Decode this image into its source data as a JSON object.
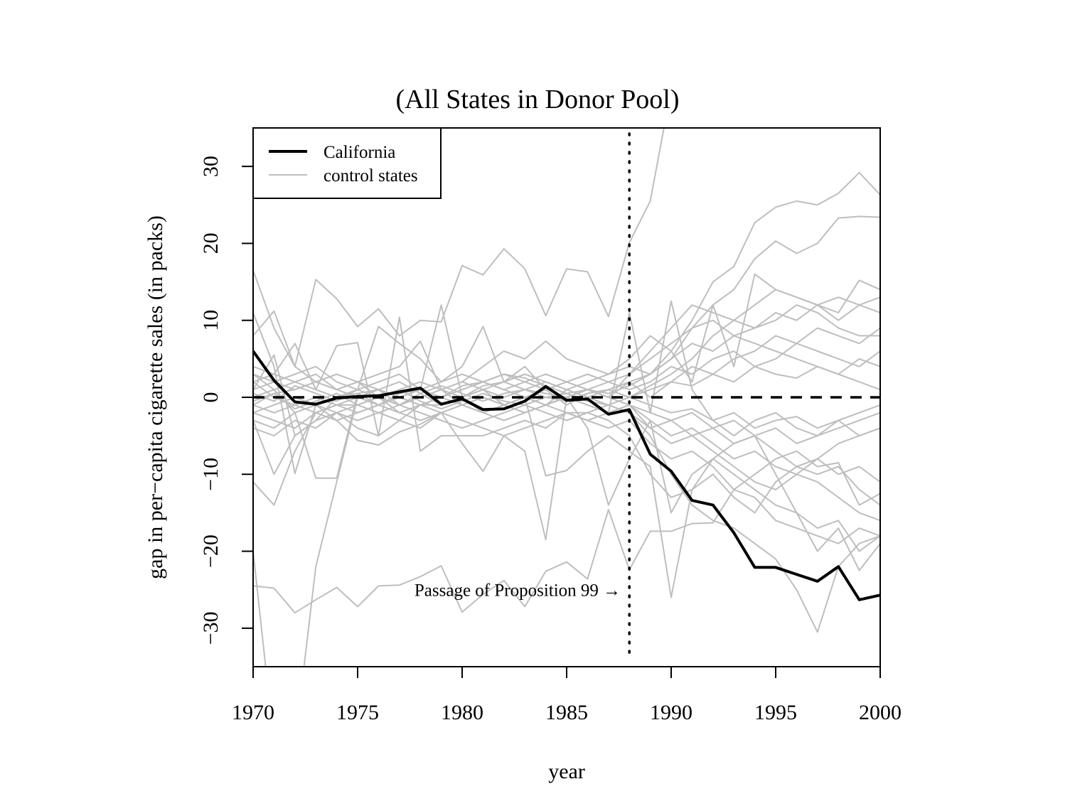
{
  "chart_data": {
    "type": "line",
    "title": "(All States in Donor Pool)",
    "xlabel": "year",
    "ylabel": "gap in per−capita cigarette sales (in packs)",
    "xlim": [
      1970,
      2000
    ],
    "ylim": [
      -35,
      35
    ],
    "x_ticks": [
      1970,
      1975,
      1980,
      1985,
      1990,
      1995,
      2000
    ],
    "x_tick_labels": [
      "1970",
      "1975",
      "1980",
      "1985",
      "1990",
      "1995",
      "2000"
    ],
    "y_ticks": [
      -30,
      -20,
      -10,
      0,
      10,
      20,
      30
    ],
    "y_tick_labels": [
      "−30",
      "−20",
      "−10",
      "0",
      "10",
      "20",
      "30"
    ],
    "grid": false,
    "legend": {
      "position": "top-left",
      "entries": [
        {
          "label": "California",
          "color": "#000000"
        },
        {
          "label": "control states",
          "color": "#bebebe"
        }
      ]
    },
    "reference_lines": [
      {
        "type": "horizontal",
        "y": 0,
        "style": "dashed",
        "color": "#000000"
      },
      {
        "type": "vertical",
        "x": 1988,
        "style": "dotted",
        "color": "#000000"
      }
    ],
    "annotation": {
      "text": "Passage of Proposition 99 →",
      "x": 1988,
      "y": -25
    },
    "x": [
      1970,
      1971,
      1972,
      1973,
      1974,
      1975,
      1976,
      1977,
      1978,
      1979,
      1980,
      1981,
      1982,
      1983,
      1984,
      1985,
      1986,
      1987,
      1988,
      1989,
      1990,
      1991,
      1992,
      1993,
      1994,
      1995,
      1996,
      1997,
      1998,
      1999,
      2000
    ],
    "series": [
      {
        "name": "California",
        "color": "#000000",
        "values": [
          6.0,
          2.2,
          -0.6,
          -0.9,
          -0.1,
          0.1,
          0.2,
          0.7,
          1.2,
          -0.9,
          -0.2,
          -1.6,
          -1.5,
          -0.5,
          1.4,
          -0.4,
          -0.2,
          -2.2,
          -1.6,
          -7.4,
          -9.6,
          -13.4,
          -14.0,
          -17.6,
          -22.1,
          -22.1,
          -23.0,
          -23.9,
          -22.0,
          -26.3,
          -25.7
        ]
      },
      {
        "name": "",
        "color": "#bebebe",
        "values": [
          16.5,
          9.0,
          4.0,
          15.3,
          12.8,
          9.2,
          11.5,
          8.0,
          10.0,
          9.8,
          17.1,
          15.9,
          19.3,
          16.7,
          10.6,
          16.7,
          16.3,
          10.5,
          20.1,
          25.5,
          40.0,
          40.0,
          40.0,
          40.0,
          40.0,
          40.0,
          40.0,
          40.0,
          40.0,
          40.0,
          40.0
        ]
      },
      {
        "name": "",
        "color": "#bebebe",
        "values": [
          -24.5,
          -24.8,
          -28.0,
          -26.3,
          -24.7,
          -27.2,
          -24.5,
          -24.4,
          -23.3,
          -21.9,
          -27.9,
          -25.6,
          -23.8,
          -27.2,
          -22.6,
          -21.4,
          -23.6,
          -14.6,
          -22.4,
          -17.4,
          -17.4,
          -16.4,
          -16.3,
          -12.0,
          -10.0,
          -8.0,
          -7.0,
          -9.0,
          -8.5,
          -14.0,
          -12.5
        ]
      },
      {
        "name": "",
        "color": "#bebebe",
        "values": [
          -20.0,
          -45.0,
          -45.0,
          -22.0,
          -11.0,
          0.0,
          1.0,
          2.0,
          0.5,
          -1.0,
          0.0,
          1.5,
          2.0,
          1.0,
          0.5,
          0.0,
          1.0,
          0.5,
          1.5,
          3.0,
          6.0,
          10.0,
          15.0,
          17.0,
          22.7,
          24.7,
          25.5,
          25.0,
          26.5,
          29.2,
          26.3
        ]
      },
      {
        "name": "",
        "color": "#bebebe",
        "values": [
          8.0,
          11.2,
          4.0,
          2.0,
          1.0,
          0.0,
          -1.0,
          0.5,
          1.0,
          0.0,
          1.5,
          2.0,
          3.0,
          2.5,
          1.5,
          0.5,
          1.0,
          0.0,
          2.0,
          3.0,
          5.0,
          9.0,
          12.0,
          14.0,
          18.0,
          20.3,
          18.7,
          20.0,
          23.3,
          23.5,
          23.4
        ]
      },
      {
        "name": "",
        "color": "#bebebe",
        "values": [
          3.0,
          1.0,
          -2.0,
          -10.5,
          -10.5,
          0.5,
          1.0,
          -1.0,
          0.0,
          1.0,
          -1.0,
          -2.0,
          -1.0,
          0.0,
          -1.0,
          1.0,
          0.0,
          -1.0,
          -2.0,
          -5.0,
          -10.0,
          -14.0,
          -16.0,
          -17.0,
          -19.0,
          -21.0,
          -25.0,
          -30.5,
          -22.0,
          -19.0,
          -18.0
        ]
      },
      {
        "name": "",
        "color": "#bebebe",
        "values": [
          11.0,
          4.0,
          -9.9,
          -1.0,
          0.0,
          0.5,
          -1.0,
          0.0,
          1.0,
          12.0,
          0.0,
          1.0,
          -1.0,
          0.0,
          1.0,
          -1.0,
          0.5,
          1.0,
          0.0,
          1.5,
          3.0,
          5.0,
          8.0,
          10.0,
          12.0,
          14.0,
          13.0,
          12.0,
          10.0,
          12.0,
          13.0
        ]
      },
      {
        "name": "",
        "color": "#bebebe",
        "values": [
          -11.0,
          -14.0,
          -7.0,
          -2.0,
          -1.0,
          -1.0,
          0.0,
          -2.0,
          -1.0,
          -1.0,
          0.0,
          -2.0,
          -1.0,
          0.0,
          -10.2,
          -9.5,
          -7.0,
          -5.0,
          -7.0,
          -9.0,
          -26.0,
          -12.0,
          -8.0,
          -10.0,
          -12.0,
          -14.0,
          -15.0,
          -17.0,
          -16.0,
          -20.0,
          -18.0
        ]
      },
      {
        "name": "",
        "color": "#bebebe",
        "values": [
          1.0,
          5.5,
          -5.0,
          -3.0,
          0.0,
          1.0,
          9.2,
          7.0,
          5.0,
          2.0,
          4.0,
          9.2,
          2.0,
          4.0,
          1.0,
          2.0,
          1.0,
          0.0,
          3.0,
          6.0,
          9.0,
          12.0,
          11.0,
          10.0,
          9.0,
          10.0,
          12.0,
          11.0,
          9.0,
          8.0,
          8.0
        ]
      },
      {
        "name": "",
        "color": "#bebebe",
        "values": [
          -3.0,
          -10.0,
          -5.0,
          -3.0,
          -2.0,
          -4.0,
          -5.0,
          -3.0,
          -4.0,
          -2.0,
          -6.0,
          -9.6,
          -5.0,
          -7.0,
          -18.5,
          0.0,
          -4.0,
          -14.0,
          -8.0,
          -3.0,
          -15.0,
          -10.0,
          -8.0,
          -6.0,
          -5.0,
          -10.0,
          -15.0,
          -20.0,
          -17.0,
          -22.5,
          -19.0
        ]
      },
      {
        "name": "",
        "color": "#bebebe",
        "values": [
          2.0,
          3.0,
          7.0,
          1.0,
          6.7,
          7.1,
          -5.0,
          10.4,
          -7.0,
          -5.0,
          -5.0,
          -5.0,
          -4.0,
          -3.0,
          -4.0,
          -2.0,
          -3.0,
          -2.0,
          11.0,
          -2.0,
          12.5,
          1.0,
          -3.0,
          -5.0,
          -3.0,
          -2.0,
          -4.0,
          -5.0,
          -3.0,
          -2.0,
          -1.0
        ]
      },
      {
        "name": "",
        "color": "#bebebe",
        "values": [
          -1.0,
          0.5,
          1.0,
          2.0,
          1.0,
          2.0,
          3.0,
          4.0,
          7.3,
          1.0,
          2.0,
          4.0,
          6.0,
          5.0,
          7.3,
          5.0,
          4.0,
          3.0,
          5.0,
          8.0,
          6.0,
          2.0,
          12.0,
          4.0,
          16.0,
          14.0,
          13.0,
          12.0,
          11.0,
          15.2,
          14.0
        ]
      },
      {
        "name": "",
        "color": "#bebebe",
        "values": [
          -2.0,
          -3.0,
          -4.0,
          -2.0,
          -3.0,
          -5.6,
          -6.2,
          -4.5,
          -3.5,
          -2.0,
          -3.0,
          -4.0,
          -5.0,
          -4.0,
          -3.0,
          -2.0,
          -2.0,
          -3.0,
          -5.0,
          -10.0,
          -13.0,
          -12.0,
          -10.0,
          -13.0,
          -15.0,
          -11.0,
          -9.0,
          -10.0,
          -9.0,
          -12.0,
          -14.0
        ]
      },
      {
        "name": "",
        "color": "#bebebe",
        "values": [
          0.0,
          1.0,
          2.0,
          1.0,
          0.0,
          1.0,
          2.0,
          3.0,
          1.0,
          0.0,
          1.0,
          2.0,
          3.0,
          2.0,
          1.0,
          2.0,
          3.0,
          2.0,
          3.0,
          5.0,
          7.0,
          9.0,
          10.0,
          8.0,
          7.0,
          6.0,
          5.0,
          4.0,
          3.0,
          2.0,
          1.0
        ]
      },
      {
        "name": "",
        "color": "#bebebe",
        "values": [
          -1.0,
          -2.0,
          -1.0,
          0.0,
          -1.0,
          -2.0,
          -1.0,
          0.0,
          -1.0,
          -2.0,
          -1.0,
          0.0,
          -1.0,
          -2.0,
          -1.0,
          0.0,
          -1.0,
          -2.0,
          -1.0,
          -3.0,
          -5.0,
          -4.0,
          -6.0,
          -8.0,
          -7.0,
          -9.0,
          -10.0,
          -8.0,
          -6.0,
          -5.0,
          -4.0
        ]
      },
      {
        "name": "",
        "color": "#bebebe",
        "values": [
          3.0,
          2.0,
          1.0,
          2.0,
          3.0,
          2.0,
          1.0,
          0.0,
          1.0,
          2.0,
          3.0,
          2.0,
          1.0,
          2.0,
          3.0,
          2.0,
          1.0,
          2.0,
          1.0,
          2.0,
          4.0,
          3.0,
          5.0,
          6.0,
          4.0,
          5.0,
          7.0,
          6.0,
          5.0,
          4.0,
          6.0
        ]
      },
      {
        "name": "",
        "color": "#bebebe",
        "values": [
          -3.0,
          -4.0,
          -2.0,
          -1.0,
          -2.0,
          -3.0,
          -2.0,
          -1.0,
          -2.0,
          -3.0,
          -4.0,
          -3.0,
          -2.0,
          -1.0,
          -2.0,
          -3.0,
          -2.0,
          -1.0,
          -2.0,
          -4.0,
          -6.0,
          -5.0,
          -7.0,
          -9.0,
          -11.0,
          -12.0,
          -10.0,
          -11.0,
          -13.0,
          -15.0,
          -16.0
        ]
      },
      {
        "name": "",
        "color": "#bebebe",
        "values": [
          2.0,
          0.0,
          -1.0,
          -2.0,
          -1.0,
          0.0,
          1.0,
          0.0,
          -1.0,
          0.0,
          1.0,
          2.0,
          1.0,
          0.0,
          -1.0,
          0.0,
          1.0,
          0.0,
          -1.0,
          -2.0,
          -3.0,
          -2.0,
          -4.0,
          -3.0,
          -5.0,
          -4.0,
          -6.0,
          -5.0,
          -4.0,
          -3.0,
          -2.0
        ]
      },
      {
        "name": "",
        "color": "#bebebe",
        "values": [
          4.0,
          3.0,
          2.0,
          3.0,
          1.0,
          2.0,
          0.0,
          1.0,
          2.0,
          1.0,
          0.0,
          1.0,
          2.0,
          3.0,
          2.0,
          1.0,
          2.0,
          3.0,
          4.0,
          3.0,
          5.0,
          7.0,
          6.0,
          8.0,
          9.0,
          11.0,
          10.0,
          12.0,
          13.0,
          12.0,
          11.0
        ]
      },
      {
        "name": "",
        "color": "#bebebe",
        "values": [
          -4.0,
          -5.0,
          -3.0,
          -4.0,
          -2.0,
          -1.0,
          -2.0,
          -3.0,
          -1.0,
          0.0,
          -1.0,
          -2.0,
          -3.0,
          -2.0,
          -1.0,
          -2.0,
          -3.0,
          -4.0,
          -3.0,
          -6.0,
          -8.0,
          -7.0,
          -9.0,
          -12.0,
          -13.0,
          -16.0,
          -17.0,
          -18.0,
          -19.0,
          -17.0,
          -18.0
        ]
      },
      {
        "name": "",
        "color": "#bebebe",
        "values": [
          1.0,
          2.0,
          3.0,
          4.0,
          2.0,
          1.0,
          0.0,
          -1.0,
          0.0,
          1.0,
          2.0,
          1.0,
          0.0,
          1.0,
          2.0,
          1.0,
          0.0,
          1.0,
          2.0,
          0.0,
          2.0,
          4.0,
          3.0,
          5.0,
          6.0,
          8.0,
          7.0,
          9.0,
          8.0,
          7.0,
          9.0
        ]
      },
      {
        "name": "",
        "color": "#bebebe",
        "values": [
          -2.0,
          -1.0,
          0.0,
          -1.0,
          -3.0,
          -2.0,
          -1.0,
          -2.0,
          -3.0,
          -2.0,
          -1.0,
          0.0,
          -1.0,
          -2.0,
          -1.0,
          0.0,
          -1.0,
          -2.0,
          -1.0,
          -4.0,
          -3.0,
          -5.0,
          -4.0,
          -6.0,
          -5.0,
          -7.0,
          -9.0,
          -8.0,
          -10.0,
          -9.0,
          -11.0
        ]
      },
      {
        "name": "",
        "color": "#bebebe",
        "values": [
          0.5,
          -0.5,
          1.5,
          0.5,
          -0.5,
          1.0,
          0.0,
          -1.0,
          0.5,
          1.5,
          0.5,
          -0.5,
          0.5,
          1.0,
          0.0,
          -0.5,
          0.5,
          1.0,
          0.0,
          1.0,
          2.0,
          1.5,
          3.0,
          2.0,
          4.0,
          3.0,
          2.5,
          4.0,
          3.0,
          5.0,
          4.0
        ]
      },
      {
        "name": "",
        "color": "#bebebe",
        "values": [
          -0.5,
          0.5,
          -1.5,
          -0.5,
          0.5,
          -1.0,
          0.0,
          1.0,
          -0.5,
          -1.5,
          -0.5,
          0.5,
          -0.5,
          -1.0,
          0.0,
          0.5,
          -0.5,
          -1.0,
          0.0,
          -1.0,
          -2.0,
          -1.5,
          -3.0,
          -2.0,
          -4.0,
          -3.0,
          -2.5,
          -4.0,
          -3.0,
          -5.0,
          -4.0
        ]
      }
    ]
  }
}
